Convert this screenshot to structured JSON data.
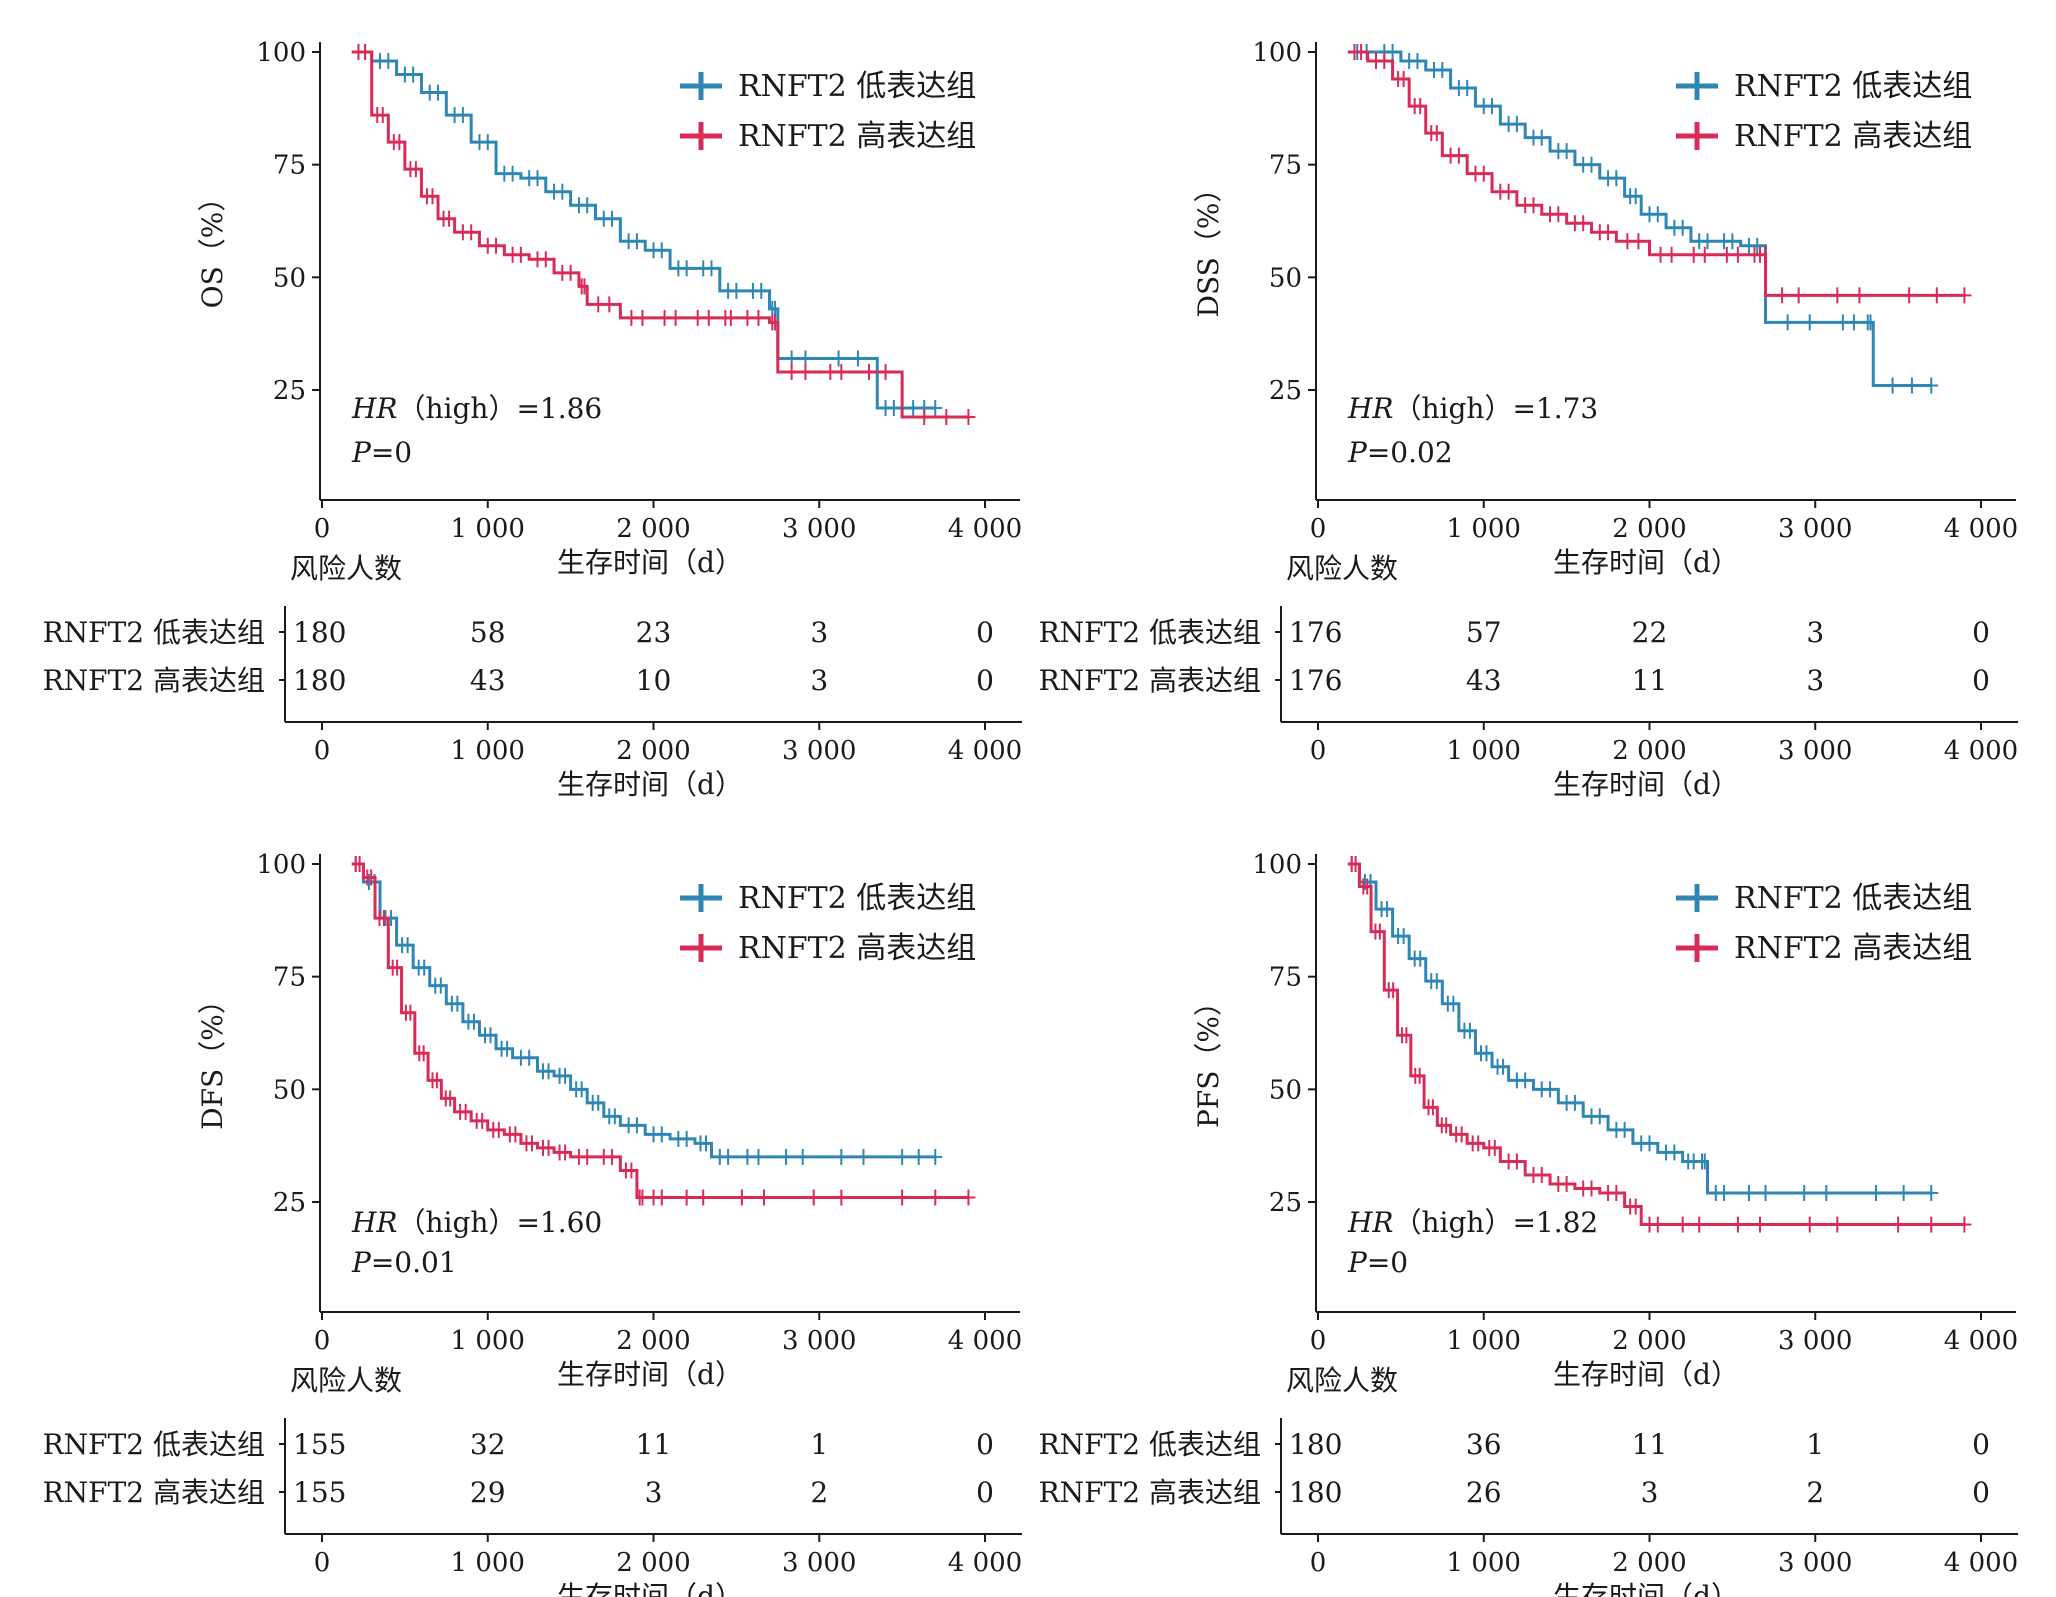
{
  "colors": {
    "low": "#2e86b5",
    "high": "#d92b57",
    "axis": "#1a1a1a"
  },
  "common": {
    "risk_title": "风险人数",
    "xlabel": "生存时间（d）",
    "x_ticks": [
      0,
      1000,
      2000,
      3000,
      4000
    ],
    "x_tick_labels": [
      "0",
      "1 000",
      "2 000",
      "3 000",
      "4 000"
    ],
    "y_ticks": [
      25,
      50,
      75,
      100
    ],
    "group_low": "RNFT2 低表达组",
    "group_high": "RNFT2 高表达组"
  },
  "chart_data": [
    {
      "type": "line",
      "ylabel": "OS（%）",
      "xlim": [
        0,
        4000
      ],
      "ylim": [
        0,
        100
      ],
      "legend_placement": "top-right",
      "hr_label": "HR",
      "hr_text": "（high）=1.86",
      "p_label": "P",
      "p_text": "=0",
      "series": [
        {
          "name": "RNFT2 低表达组",
          "color": "#2e86b5",
          "x": [
            180,
            300,
            450,
            600,
            750,
            900,
            1050,
            1200,
            1350,
            1500,
            1650,
            1800,
            1950,
            2100,
            2250,
            2400,
            2550,
            2700,
            2750,
            3000,
            3350,
            3500,
            3700
          ],
          "y": [
            100,
            98,
            95,
            91,
            86,
            80,
            73,
            72,
            69,
            66,
            63,
            58,
            56,
            52,
            52,
            47,
            47,
            43,
            32,
            32,
            21,
            21,
            21
          ]
        },
        {
          "name": "RNFT2 高表达组",
          "color": "#d92b57",
          "x": [
            180,
            300,
            400,
            500,
            600,
            700,
            800,
            950,
            1100,
            1250,
            1400,
            1550,
            1600,
            1800,
            2000,
            2200,
            2400,
            2500,
            2700,
            2750,
            3000,
            3200,
            3500,
            3900
          ],
          "y": [
            100,
            86,
            80,
            74,
            68,
            63,
            60,
            57,
            55,
            54,
            51,
            48,
            44,
            41,
            41,
            41,
            41,
            41,
            40,
            29,
            29,
            29,
            19,
            19
          ]
        }
      ],
      "risk_table": {
        "low": [
          "180",
          "58",
          "23",
          "3",
          "0"
        ],
        "high": [
          "180",
          "43",
          "10",
          "3",
          "0"
        ]
      }
    },
    {
      "type": "line",
      "ylabel": "DSS（%）",
      "xlim": [
        0,
        4000
      ],
      "ylim": [
        0,
        100
      ],
      "legend_placement": "top-right",
      "hr_label": "HR",
      "hr_text": "（high）=1.73",
      "p_label": "P",
      "p_text": "=0.02",
      "series": [
        {
          "name": "RNFT2 低表达组",
          "color": "#2e86b5",
          "x": [
            180,
            350,
            500,
            650,
            800,
            950,
            1100,
            1250,
            1400,
            1550,
            1700,
            1850,
            1950,
            2100,
            2250,
            2400,
            2550,
            2700,
            2700,
            3100,
            3300,
            3350,
            3700
          ],
          "y": [
            100,
            100,
            98,
            96,
            92,
            88,
            84,
            81,
            78,
            75,
            72,
            68,
            64,
            61,
            58,
            58,
            57,
            55,
            40,
            40,
            40,
            26,
            26
          ]
        },
        {
          "name": "RNFT2 高表达组",
          "color": "#d92b57",
          "x": [
            180,
            300,
            450,
            550,
            650,
            750,
            900,
            1050,
            1200,
            1350,
            1500,
            1650,
            1800,
            2000,
            2200,
            2400,
            2600,
            2700,
            2700,
            3000,
            3400,
            3900
          ],
          "y": [
            100,
            98,
            94,
            88,
            82,
            77,
            73,
            69,
            66,
            64,
            62,
            60,
            58,
            55,
            55,
            55,
            55,
            55,
            46,
            46,
            46,
            46
          ]
        }
      ],
      "risk_table": {
        "low": [
          "176",
          "57",
          "22",
          "3",
          "0"
        ],
        "high": [
          "176",
          "43",
          "11",
          "3",
          "0"
        ]
      }
    },
    {
      "type": "line",
      "ylabel": "DFS（%）",
      "xlim": [
        0,
        4000
      ],
      "ylim": [
        0,
        100
      ],
      "legend_placement": "top-right",
      "hr_label": "HR",
      "hr_text": "（high）=1.60",
      "p_label": "P",
      "p_text": "=0.01",
      "series": [
        {
          "name": "RNFT2 低表达组",
          "color": "#2e86b5",
          "x": [
            180,
            250,
            350,
            450,
            550,
            650,
            750,
            850,
            950,
            1050,
            1150,
            1300,
            1400,
            1500,
            1600,
            1700,
            1800,
            1950,
            2100,
            2250,
            2350,
            2500,
            2700,
            3000,
            3400,
            3700
          ],
          "y": [
            100,
            96,
            88,
            82,
            77,
            73,
            69,
            65,
            62,
            59,
            57,
            54,
            53,
            50,
            47,
            44,
            42,
            40,
            39,
            38,
            35,
            35,
            35,
            35,
            35,
            35
          ]
        },
        {
          "name": "RNFT2 高表达组",
          "color": "#d92b57",
          "x": [
            180,
            250,
            320,
            400,
            480,
            560,
            640,
            720,
            800,
            900,
            1000,
            1100,
            1200,
            1300,
            1400,
            1500,
            1650,
            1800,
            1900,
            1950,
            2100,
            2400,
            2800,
            3300,
            3900
          ],
          "y": [
            100,
            97,
            88,
            77,
            67,
            58,
            52,
            48,
            45,
            43,
            41,
            40,
            38,
            37,
            36,
            35,
            35,
            32,
            26,
            26,
            26,
            26,
            26,
            26,
            26
          ]
        }
      ],
      "risk_table": {
        "low": [
          "155",
          "32",
          "11",
          "1",
          "0"
        ],
        "high": [
          "155",
          "29",
          "3",
          "2",
          "0"
        ]
      }
    },
    {
      "type": "line",
      "ylabel": "PFS（%）",
      "xlim": [
        0,
        4000
      ],
      "ylim": [
        0,
        100
      ],
      "legend_placement": "top-right",
      "hr_label": "HR",
      "hr_text": "（high）=1.82",
      "p_label": "P",
      "p_text": "=0",
      "series": [
        {
          "name": "RNFT2 低表达组",
          "color": "#2e86b5",
          "x": [
            180,
            250,
            350,
            450,
            550,
            650,
            750,
            850,
            950,
            1050,
            1150,
            1300,
            1450,
            1600,
            1750,
            1900,
            2050,
            2200,
            2300,
            2350,
            2500,
            2800,
            3200,
            3700
          ],
          "y": [
            100,
            96,
            90,
            84,
            79,
            74,
            69,
            63,
            58,
            55,
            52,
            50,
            47,
            44,
            41,
            38,
            36,
            34,
            34,
            27,
            27,
            27,
            27,
            27
          ]
        },
        {
          "name": "RNFT2 高表达组",
          "color": "#d92b57",
          "x": [
            180,
            250,
            320,
            400,
            480,
            560,
            640,
            720,
            800,
            900,
            1000,
            1100,
            1250,
            1400,
            1550,
            1700,
            1850,
            1950,
            2100,
            2400,
            2800,
            3300,
            3900
          ],
          "y": [
            100,
            95,
            85,
            72,
            62,
            53,
            46,
            42,
            40,
            38,
            37,
            34,
            31,
            29,
            28,
            27,
            24,
            20,
            20,
            20,
            20,
            20,
            20
          ]
        }
      ],
      "risk_table": {
        "low": [
          "180",
          "36",
          "11",
          "1",
          "0"
        ],
        "high": [
          "180",
          "26",
          "3",
          "2",
          "0"
        ]
      }
    }
  ]
}
